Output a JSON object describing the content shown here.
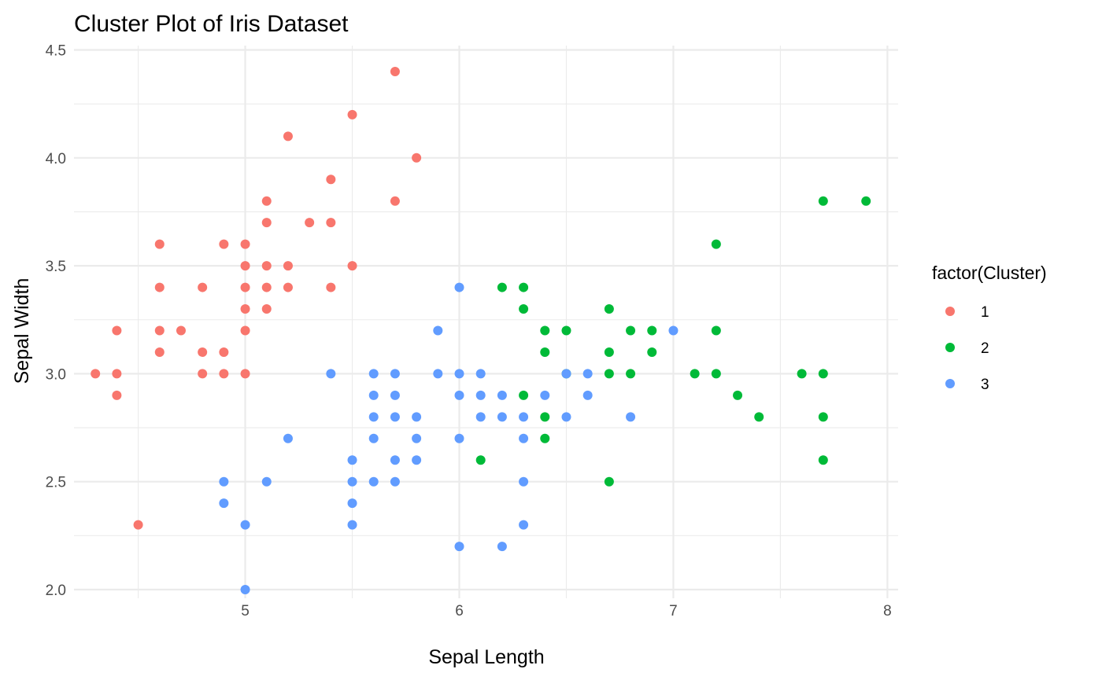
{
  "chart_data": {
    "type": "scatter",
    "title": "Cluster Plot of Iris Dataset",
    "xlabel": "Sepal Length",
    "ylabel": "Sepal Width",
    "xlim": [
      4.2,
      8.05
    ],
    "ylim": [
      1.96,
      4.52
    ],
    "x_ticks": [
      5,
      6,
      7,
      8
    ],
    "y_ticks": [
      2.0,
      2.5,
      3.0,
      3.5,
      4.0,
      4.5
    ],
    "x_tick_labels": [
      "5",
      "6",
      "7",
      "8"
    ],
    "y_tick_labels": [
      "2.0",
      "2.5",
      "3.0",
      "3.5",
      "4.0",
      "4.5"
    ],
    "x_minor_ticks": [
      4.5,
      5.5,
      6.5,
      7.5
    ],
    "y_minor_ticks": [
      2.25,
      2.75,
      3.25,
      3.75,
      4.25
    ],
    "grid": true,
    "legend": {
      "title": "factor(Cluster)",
      "position": "right"
    },
    "series": [
      {
        "name": "1",
        "color": "#F8766D",
        "points": [
          [
            5.7,
            4.4
          ],
          [
            5.5,
            4.2
          ],
          [
            5.2,
            4.1
          ],
          [
            5.8,
            4.0
          ],
          [
            5.4,
            3.9
          ],
          [
            5.1,
            3.8
          ],
          [
            5.7,
            3.8
          ],
          [
            5.1,
            3.7
          ],
          [
            5.3,
            3.7
          ],
          [
            5.4,
            3.7
          ],
          [
            4.6,
            3.6
          ],
          [
            4.9,
            3.6
          ],
          [
            5.0,
            3.6
          ],
          [
            5.0,
            3.5
          ],
          [
            5.1,
            3.5
          ],
          [
            5.2,
            3.5
          ],
          [
            5.5,
            3.5
          ],
          [
            4.6,
            3.4
          ],
          [
            4.8,
            3.4
          ],
          [
            5.0,
            3.4
          ],
          [
            5.1,
            3.4
          ],
          [
            5.2,
            3.4
          ],
          [
            5.4,
            3.4
          ],
          [
            5.0,
            3.3
          ],
          [
            5.1,
            3.3
          ],
          [
            4.4,
            3.2
          ],
          [
            4.6,
            3.2
          ],
          [
            4.7,
            3.2
          ],
          [
            5.0,
            3.2
          ],
          [
            4.6,
            3.1
          ],
          [
            4.8,
            3.1
          ],
          [
            4.9,
            3.1
          ],
          [
            4.3,
            3.0
          ],
          [
            4.4,
            3.0
          ],
          [
            4.8,
            3.0
          ],
          [
            4.9,
            3.0
          ],
          [
            5.0,
            3.0
          ],
          [
            4.4,
            2.9
          ],
          [
            4.5,
            2.3
          ]
        ]
      },
      {
        "name": "2",
        "color": "#00BA38",
        "points": [
          [
            7.7,
            3.8
          ],
          [
            7.9,
            3.8
          ],
          [
            7.2,
            3.6
          ],
          [
            6.2,
            3.4
          ],
          [
            6.3,
            3.4
          ],
          [
            6.3,
            3.3
          ],
          [
            6.7,
            3.3
          ],
          [
            6.4,
            3.2
          ],
          [
            6.5,
            3.2
          ],
          [
            6.8,
            3.2
          ],
          [
            6.9,
            3.2
          ],
          [
            7.2,
            3.2
          ],
          [
            6.4,
            3.1
          ],
          [
            6.7,
            3.1
          ],
          [
            6.9,
            3.1
          ],
          [
            6.5,
            3.0
          ],
          [
            6.7,
            3.0
          ],
          [
            6.8,
            3.0
          ],
          [
            7.1,
            3.0
          ],
          [
            7.2,
            3.0
          ],
          [
            7.6,
            3.0
          ],
          [
            7.7,
            3.0
          ],
          [
            6.3,
            2.9
          ],
          [
            7.3,
            2.9
          ],
          [
            6.4,
            2.8
          ],
          [
            7.4,
            2.8
          ],
          [
            7.7,
            2.8
          ],
          [
            6.4,
            2.7
          ],
          [
            6.1,
            2.6
          ],
          [
            7.7,
            2.6
          ],
          [
            6.7,
            2.5
          ]
        ]
      },
      {
        "name": "3",
        "color": "#619CFF",
        "points": [
          [
            6.0,
            3.4
          ],
          [
            5.9,
            3.2
          ],
          [
            7.0,
            3.2
          ],
          [
            5.4,
            3.0
          ],
          [
            5.6,
            3.0
          ],
          [
            5.7,
            3.0
          ],
          [
            5.9,
            3.0
          ],
          [
            6.0,
            3.0
          ],
          [
            6.1,
            3.0
          ],
          [
            6.5,
            3.0
          ],
          [
            6.6,
            3.0
          ],
          [
            5.6,
            2.9
          ],
          [
            5.7,
            2.9
          ],
          [
            6.0,
            2.9
          ],
          [
            6.1,
            2.9
          ],
          [
            6.2,
            2.9
          ],
          [
            6.4,
            2.9
          ],
          [
            6.6,
            2.9
          ],
          [
            5.6,
            2.8
          ],
          [
            5.7,
            2.8
          ],
          [
            5.8,
            2.8
          ],
          [
            6.1,
            2.8
          ],
          [
            6.2,
            2.8
          ],
          [
            6.3,
            2.8
          ],
          [
            6.5,
            2.8
          ],
          [
            6.8,
            2.8
          ],
          [
            5.2,
            2.7
          ],
          [
            5.6,
            2.7
          ],
          [
            5.8,
            2.7
          ],
          [
            6.0,
            2.7
          ],
          [
            6.3,
            2.7
          ],
          [
            5.5,
            2.6
          ],
          [
            5.7,
            2.6
          ],
          [
            5.8,
            2.6
          ],
          [
            4.9,
            2.5
          ],
          [
            5.1,
            2.5
          ],
          [
            5.5,
            2.5
          ],
          [
            5.6,
            2.5
          ],
          [
            5.7,
            2.5
          ],
          [
            6.3,
            2.5
          ],
          [
            4.9,
            2.4
          ],
          [
            5.5,
            2.4
          ],
          [
            5.0,
            2.3
          ],
          [
            5.5,
            2.3
          ],
          [
            6.3,
            2.3
          ],
          [
            6.0,
            2.2
          ],
          [
            6.2,
            2.2
          ],
          [
            5.0,
            2.0
          ]
        ]
      }
    ]
  }
}
